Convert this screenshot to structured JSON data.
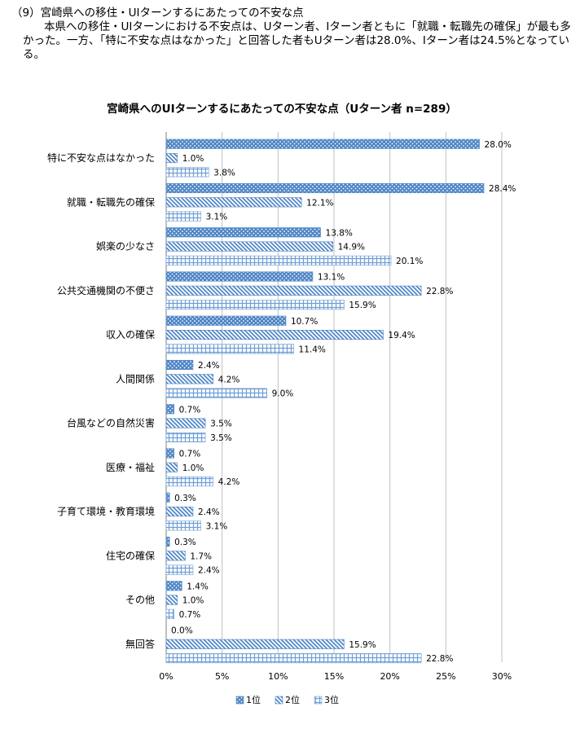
{
  "heading": {
    "title": "（9）宮崎県への移住・UIターンするにあたっての不安な点",
    "paragraph": "本県への移住・UIターンにおける不安点は、Uターン者、Iターン者ともに「就職・転職先の確保」が最も多かった。一方、「特に不安な点はなかった」と回答した者もUターン者は28.0%、Iターン者は24.5%となっている。"
  },
  "chart_data": {
    "type": "bar",
    "orientation": "horizontal",
    "title": "宮崎県へのUIターンするにあたっての不安な点（Uターン者 n=289）",
    "categories": [
      "特に不安な点はなかった",
      "就職・転職先の確保",
      "娯楽の少なさ",
      "公共交通機関の不便さ",
      "収入の確保",
      "人間関係",
      "台風などの自然災害",
      "医療・福祉",
      "子育て環境・教育環境",
      "住宅の確保",
      "その他",
      "無回答"
    ],
    "series": [
      {
        "name": "1位",
        "values": [
          28.0,
          28.4,
          13.8,
          13.1,
          10.7,
          2.4,
          0.7,
          0.7,
          0.3,
          0.3,
          1.4,
          0.0
        ],
        "labels": [
          "28.0%",
          "28.4%",
          "13.8%",
          "13.1%",
          "10.7%",
          "2.4%",
          "0.7%",
          "0.7%",
          "0.3%",
          "0.3%",
          "1.4%",
          "0.0%"
        ]
      },
      {
        "name": "2位",
        "values": [
          1.0,
          12.1,
          14.9,
          22.8,
          19.4,
          4.2,
          3.5,
          1.0,
          2.4,
          1.7,
          1.0,
          15.9
        ],
        "labels": [
          "1.0%",
          "12.1%",
          "14.9%",
          "22.8%",
          "19.4%",
          "4.2%",
          "3.5%",
          "1.0%",
          "2.4%",
          "1.7%",
          "1.0%",
          "15.9%"
        ]
      },
      {
        "name": "3位",
        "values": [
          3.8,
          3.1,
          20.1,
          15.9,
          11.4,
          9.0,
          3.5,
          4.2,
          3.1,
          2.4,
          0.7,
          22.8
        ],
        "labels": [
          "3.8%",
          "3.1%",
          "20.1%",
          "15.9%",
          "11.4%",
          "9.0%",
          "3.5%",
          "4.2%",
          "3.1%",
          "2.4%",
          "0.7%",
          "22.8%"
        ]
      }
    ],
    "xlim": [
      0,
      30
    ],
    "xticks": [
      0,
      5,
      10,
      15,
      20,
      25,
      30
    ],
    "xtick_labels": [
      "0%",
      "5%",
      "10%",
      "15%",
      "20%",
      "25%",
      "30%"
    ],
    "grid": true,
    "legend": "bottom",
    "colors": {
      "rank1": "#4f86c6",
      "rank2": "#4f86c6",
      "rank3": "#6f9fd6",
      "grid": "#bfbfbf",
      "axis": "#7f7f7f"
    }
  }
}
